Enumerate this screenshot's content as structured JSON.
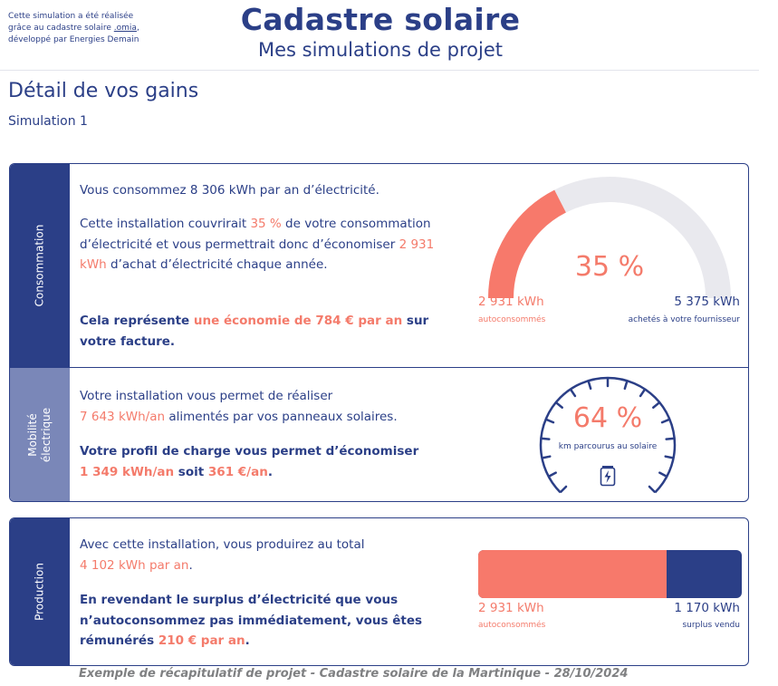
{
  "header": {
    "credit_line1": "Cette simulation a été réalisée",
    "credit_line2_prefix": "grâce au cadastre solaire ",
    "credit_link": ".omia",
    "credit_line2_suffix": ",",
    "credit_line3": "développé par Energies Demain",
    "title": "Cadastre solaire",
    "subtitle": "Mes simulations de projet"
  },
  "page": {
    "title": "Détail de vos gains",
    "subtitle": "Simulation 1"
  },
  "consommation": {
    "label": "Consommation",
    "line1": "Vous consommez 8 306 kWh par an d’électricité.",
    "p2_a": "Cette installation couvrirait ",
    "p2_pct": "35 %",
    "p2_b": " de votre consommation d’électricité et vous permettrait donc d’économiser ",
    "p2_kwh": "2 931 kWh",
    "p2_c": " d’achat d’électricité chaque année.",
    "p3_a": "Cela représente ",
    "p3_hl": "une économie de 784 € par an",
    "p3_b": " sur votre facture.",
    "gauge_label": "35 %",
    "gauge_fraction": 0.35,
    "left_value": "2 931 kWh",
    "left_caption": "autoconsommés",
    "right_value": "5 375 kWh",
    "right_caption": "achetés à votre fournisseur"
  },
  "mobilite": {
    "label_line1": "Mobilité",
    "label_line2": "électrique",
    "p1_a": "Votre installation vous permet de réaliser",
    "p1_hl": "7 643 kWh/an",
    "p1_b": " alimentés par vos panneaux solaires.",
    "p2_a": "Votre profil de charge vous permet d’économiser",
    "p2_kwh": "1 349 kWh/an",
    "p2_mid": " soit ",
    "p2_eur": "361 €/an",
    "p2_end": ".",
    "gauge_label": "64 %",
    "gauge_caption": "km parcourus au solaire",
    "gauge_fraction": 0.64
  },
  "production": {
    "label": "Production",
    "p1_a": "Avec cette installation, vous produirez au total",
    "p1_hl": "4 102 kWh par an",
    "p1_b": ".",
    "p2_a": "En revendant le surplus d’électricité que vous n’autoconsommez pas immédiatement, vous êtes rémunérés ",
    "p2_hl": "210 € par an",
    "p2_b": ".",
    "bar_fraction": 0.714,
    "left_value": "2 931 kWh",
    "left_caption": "autoconsommés",
    "right_value": "1 170 kWh",
    "right_caption": "surplus vendu"
  },
  "footer": "Exemple de récapitulatif de projet - Cadastre solaire de la Martinique - 28/10/2024",
  "colors": {
    "navy": "#2b3f87",
    "coral": "#f47b6b",
    "grey_track": "#e9e9ee",
    "mobility_side": "#7a87b8"
  },
  "icons": {
    "battery": "battery-charging-icon"
  }
}
